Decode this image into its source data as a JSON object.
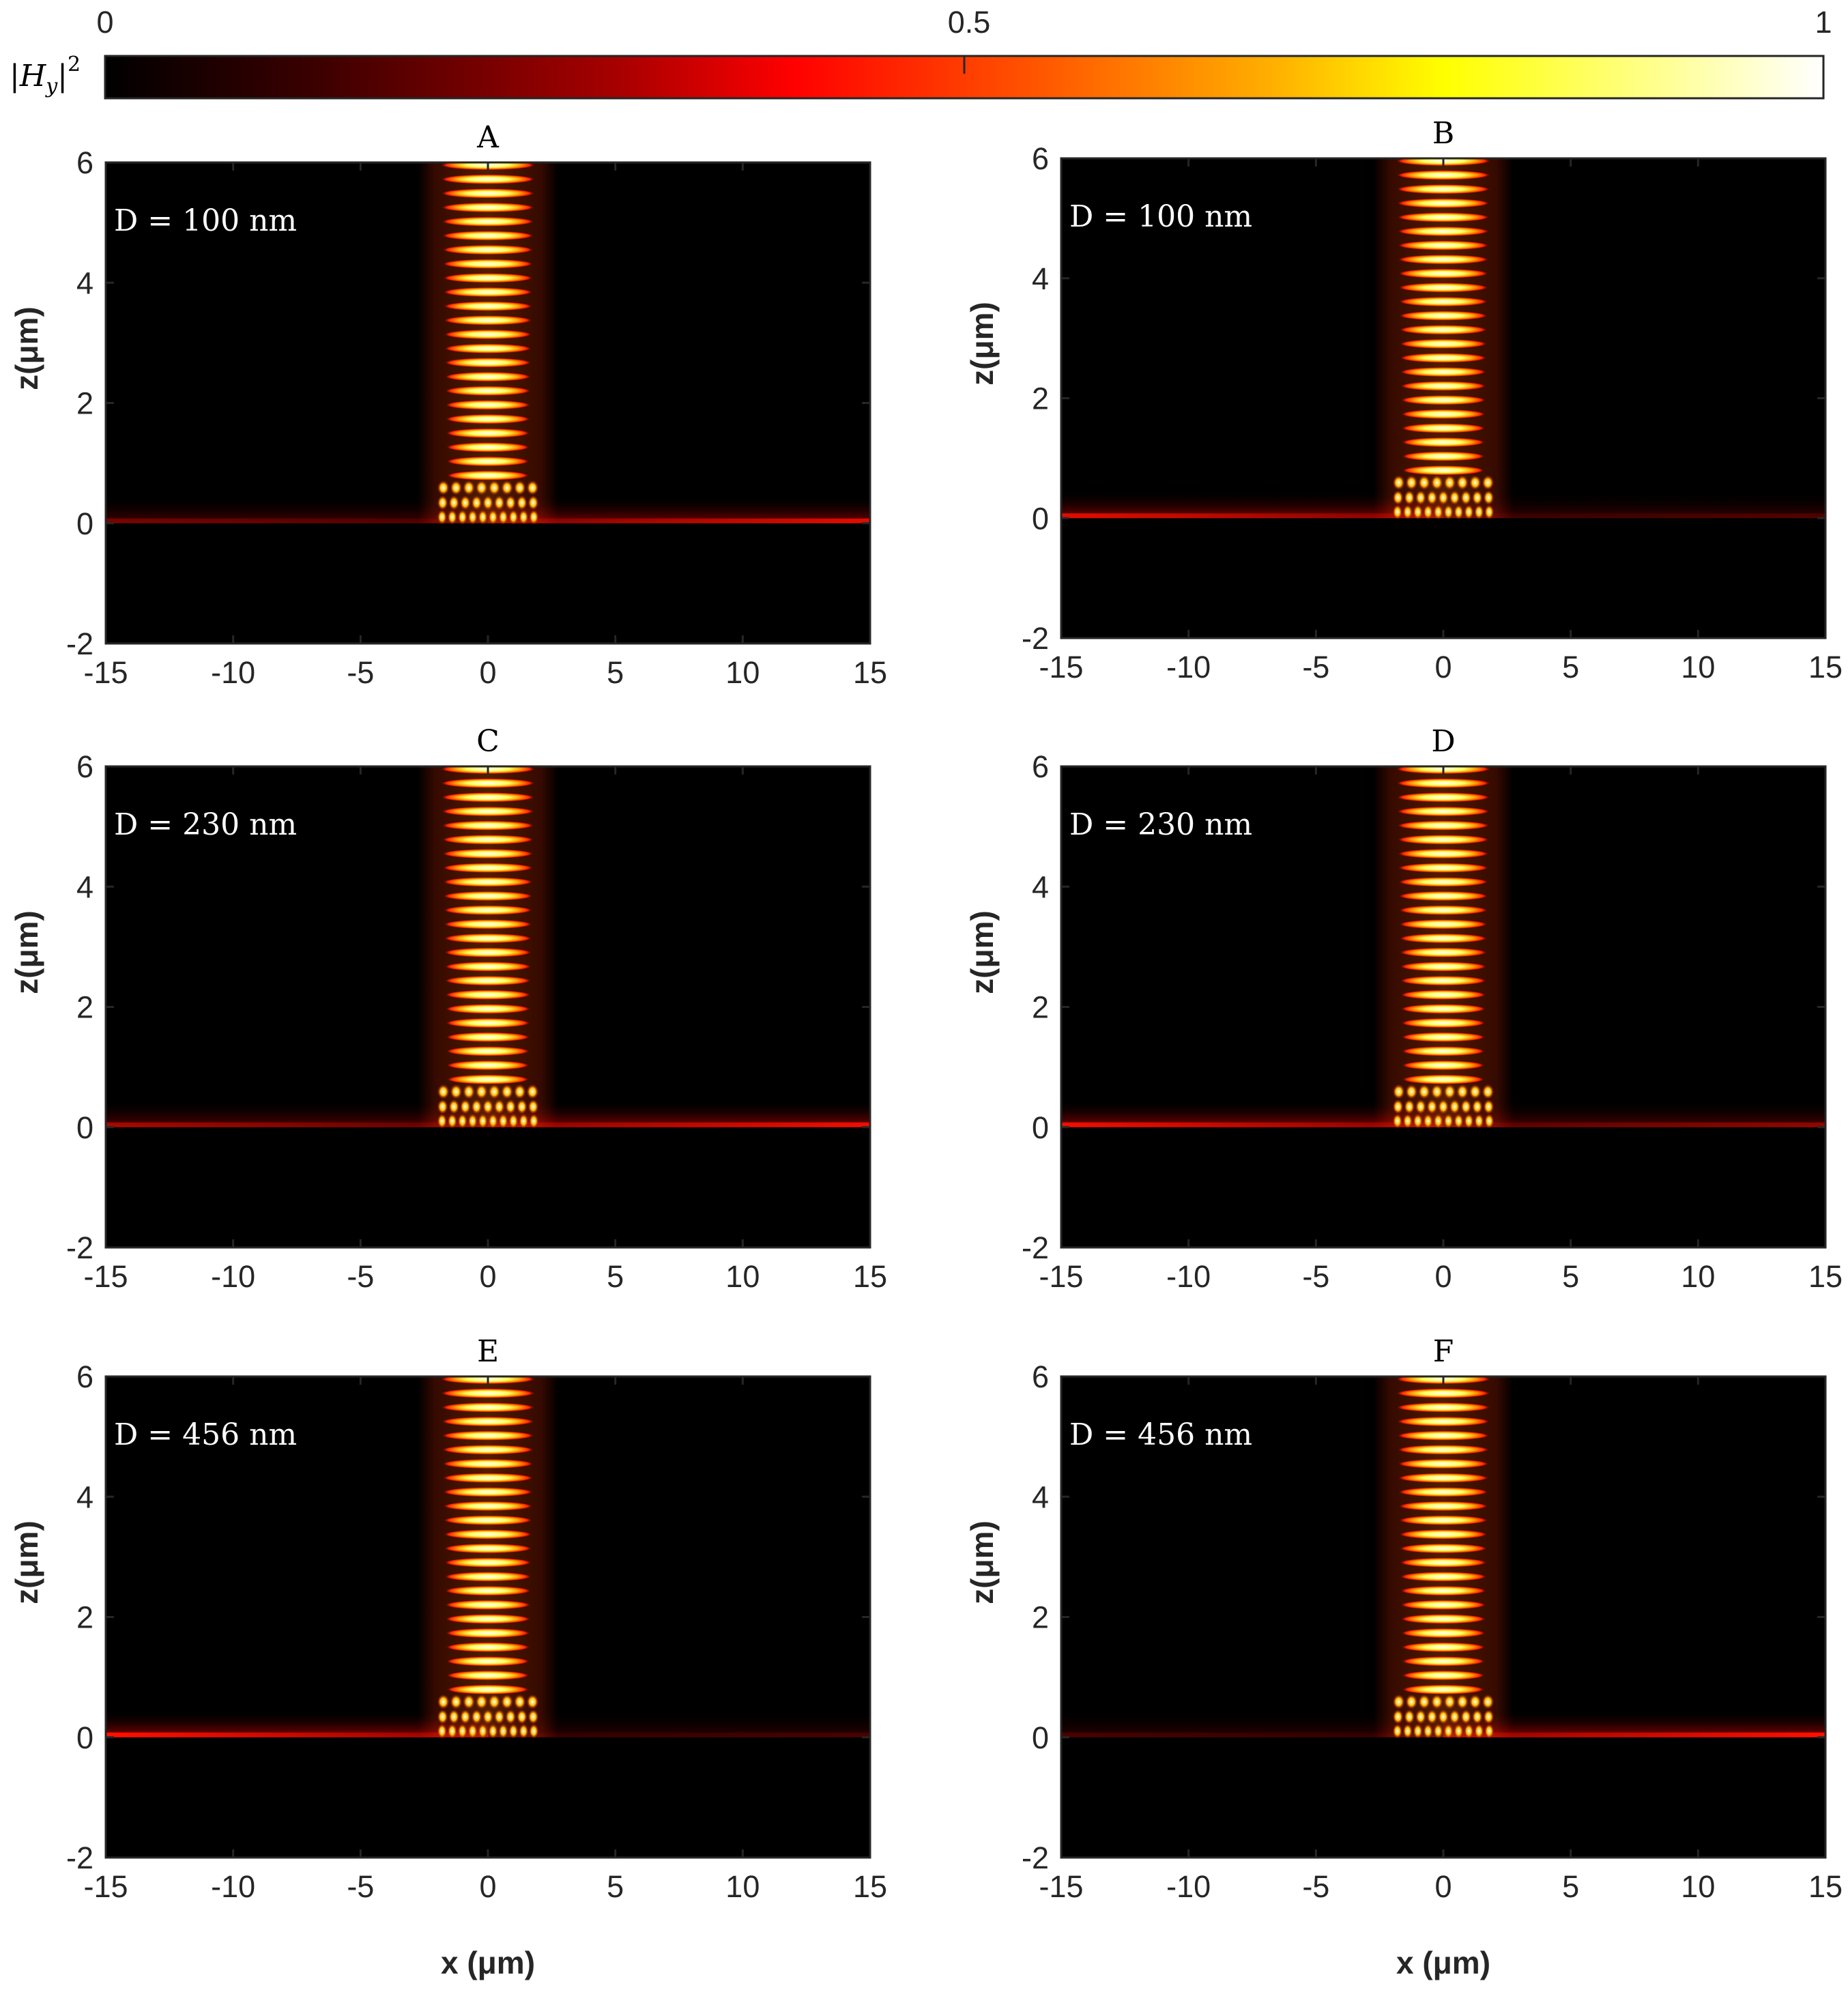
{
  "colorbar": {
    "label_prefix": "|H",
    "label_sub": "y",
    "label_suffix": "|",
    "label_sup": "2",
    "ticks": [
      0,
      0.5,
      1
    ],
    "tick_labels": [
      "0",
      "0.5",
      "1"
    ],
    "colormap": "hot",
    "colors": [
      "#000000",
      "#8b0000",
      "#ff0000",
      "#ff8000",
      "#ffff00",
      "#ffffff"
    ]
  },
  "chart_data": [
    {
      "type": "heatmap",
      "title": "A",
      "annotation": "D = 100 nm",
      "xlabel": "",
      "ylabel": "z(μm)",
      "xlim": [
        -15,
        15
      ],
      "ylim": [
        -2,
        6
      ],
      "xticks": [
        -15,
        -10,
        -5,
        0,
        5,
        10,
        15
      ],
      "xtick_labels": [
        "-15",
        "-10",
        "-5",
        "0",
        "5",
        "10",
        "15"
      ],
      "yticks": [
        -2,
        0,
        2,
        4,
        6
      ],
      "ytick_labels": [
        "-2",
        "0",
        "2",
        "4",
        "6"
      ],
      "beam_center_x": 0,
      "beam_width_x": 4,
      "surface_z": 0,
      "surface_wave": {
        "from_x": -15,
        "to_x": 15,
        "weight_left": 0.3,
        "weight_right": 0.8
      }
    },
    {
      "type": "heatmap",
      "title": "B",
      "annotation": "D = 100 nm",
      "xlabel": "",
      "ylabel": "z(μm)",
      "xlim": [
        -15,
        15
      ],
      "ylim": [
        -2,
        6
      ],
      "xticks": [
        -15,
        -10,
        -5,
        0,
        5,
        10,
        15
      ],
      "xtick_labels": [
        "-15",
        "-10",
        "-5",
        "0",
        "5",
        "10",
        "15"
      ],
      "yticks": [
        -2,
        0,
        2,
        4,
        6
      ],
      "ytick_labels": [
        "-2",
        "0",
        "2",
        "4",
        "6"
      ],
      "beam_center_x": 0,
      "beam_width_x": 4,
      "surface_z": 0,
      "surface_wave": {
        "from_x": -15,
        "to_x": 15,
        "weight_left": 0.8,
        "weight_right": 0.15
      }
    },
    {
      "type": "heatmap",
      "title": "C",
      "annotation": "D = 230 nm",
      "xlabel": "",
      "ylabel": "z(μm)",
      "xlim": [
        -15,
        15
      ],
      "ylim": [
        -2,
        6
      ],
      "xticks": [
        -15,
        -10,
        -5,
        0,
        5,
        10,
        15
      ],
      "xtick_labels": [
        "-15",
        "-10",
        "-5",
        "0",
        "5",
        "10",
        "15"
      ],
      "yticks": [
        -2,
        0,
        2,
        4,
        6
      ],
      "ytick_labels": [
        "-2",
        "0",
        "2",
        "4",
        "6"
      ],
      "beam_center_x": 0,
      "beam_width_x": 4,
      "surface_z": 0,
      "surface_wave": {
        "from_x": -15,
        "to_x": 15,
        "weight_left": 0.5,
        "weight_right": 0.9
      }
    },
    {
      "type": "heatmap",
      "title": "D",
      "annotation": "D = 230 nm",
      "xlabel": "",
      "ylabel": "z(μm)",
      "xlim": [
        -15,
        15
      ],
      "ylim": [
        -2,
        6
      ],
      "xticks": [
        -15,
        -10,
        -5,
        0,
        5,
        10,
        15
      ],
      "xtick_labels": [
        "-15",
        "-10",
        "-5",
        "0",
        "5",
        "10",
        "15"
      ],
      "yticks": [
        -2,
        0,
        2,
        4,
        6
      ],
      "ytick_labels": [
        "-2",
        "0",
        "2",
        "4",
        "6"
      ],
      "beam_center_x": 0,
      "beam_width_x": 4,
      "surface_z": 0,
      "surface_wave": {
        "from_x": -15,
        "to_x": 15,
        "weight_left": 0.9,
        "weight_right": 0.4
      }
    },
    {
      "type": "heatmap",
      "title": "E",
      "annotation": "D = 456 nm",
      "xlabel": "x (μm)",
      "ylabel": "z(μm)",
      "xlim": [
        -15,
        15
      ],
      "ylim": [
        -2,
        6
      ],
      "xticks": [
        -15,
        -10,
        -5,
        0,
        5,
        10,
        15
      ],
      "xtick_labels": [
        "-15",
        "-10",
        "-5",
        "0",
        "5",
        "10",
        "15"
      ],
      "yticks": [
        -2,
        0,
        2,
        4,
        6
      ],
      "ytick_labels": [
        "-2",
        "0",
        "2",
        "4",
        "6"
      ],
      "beam_center_x": 0,
      "beam_width_x": 4,
      "surface_z": 0,
      "surface_wave": {
        "from_x": -15,
        "to_x": 15,
        "weight_left": 1.0,
        "weight_right": 0.05
      }
    },
    {
      "type": "heatmap",
      "title": "F",
      "annotation": "D = 456 nm",
      "xlabel": "x (μm)",
      "ylabel": "z(μm)",
      "xlim": [
        -15,
        15
      ],
      "ylim": [
        -2,
        6
      ],
      "xticks": [
        -15,
        -10,
        -5,
        0,
        5,
        10,
        15
      ],
      "xtick_labels": [
        "-15",
        "-10",
        "-5",
        "0",
        "5",
        "10",
        "15"
      ],
      "yticks": [
        -2,
        0,
        2,
        4,
        6
      ],
      "ytick_labels": [
        "-2",
        "0",
        "2",
        "4",
        "6"
      ],
      "beam_center_x": 0,
      "beam_width_x": 4,
      "surface_z": 0,
      "surface_wave": {
        "from_x": -15,
        "to_x": 15,
        "weight_left": 0.05,
        "weight_right": 1.0
      }
    }
  ]
}
